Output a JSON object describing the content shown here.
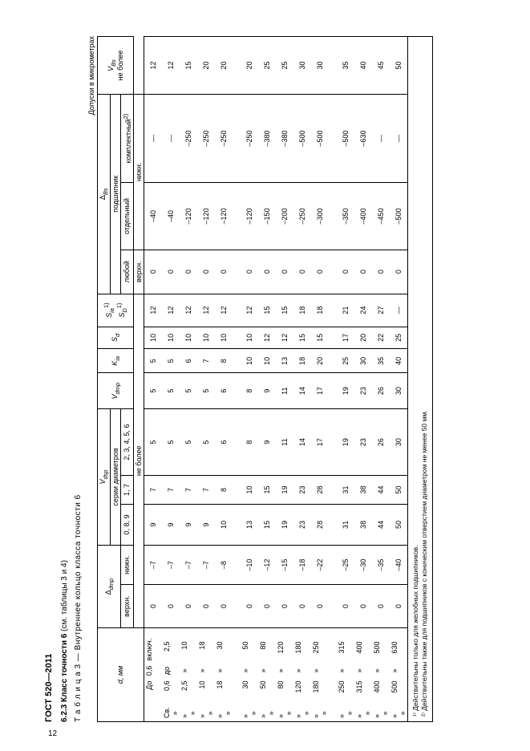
{
  "doc_header": "ГОСТ 520—2011",
  "page_number": "12",
  "section_number": "6.2.3",
  "section_title": "Класс точности 6",
  "section_paren": "(см. таблицы 3 и 4)",
  "table_label": "Т а б л и ц а  3 — Внутреннее кольцо класса точности 6",
  "units_label": "Допуски в микрометрах",
  "head": {
    "d_mm": "d, мм",
    "delta_dmp": "Δ_dmp",
    "V_dsp": "V_dsp",
    "series": "серии диаметров",
    "s089": "0, 8, 9",
    "s17": "1, 7",
    "s23456": "2, 3, 4, 5, 6",
    "V_dmp": "V_dmp",
    "Kia": "K_ia",
    "Sd": "S_d",
    "Sia_SD": "S_ia^1)\nS_D^1)",
    "delta_Bs": "Δ_Bs",
    "bearing": "подшипник",
    "any": "любой",
    "single": "отдельный",
    "complete": "комплектный^2)",
    "Vbs": "V_Bs\nне более",
    "upper": "верхн.",
    "lower": "нижн.",
    "not_more": "не более"
  },
  "rows": [
    {
      "a": "",
      "b": "До",
      "c": "0,6",
      "d": "включ.",
      "dmp_u": "0",
      "dmp_l": "–7",
      "v089": "9",
      "v17": "7",
      "v23456": "5",
      "vdmp": "5",
      "kia": "5",
      "sd": "10",
      "sia": "12",
      "bs_u": "0",
      "bs_s": "–40",
      "bs_c": "—",
      "vbs": "12"
    },
    {
      "a": "Св.",
      "b": "0,6",
      "c": "до",
      "d": "2,5",
      "post": "»",
      "dmp_u": "0",
      "dmp_l": "–7",
      "v089": "9",
      "v17": "7",
      "v23456": "5",
      "vdmp": "5",
      "kia": "5",
      "sd": "10",
      "sia": "12",
      "bs_u": "0",
      "bs_s": "–40",
      "bs_c": "—",
      "vbs": "12"
    },
    {
      "a": "»",
      "b": "2,5",
      "c": "»",
      "d": "10",
      "post": "»",
      "dmp_u": "0",
      "dmp_l": "–7",
      "v089": "9",
      "v17": "7",
      "v23456": "5",
      "vdmp": "5",
      "kia": "6",
      "sd": "10",
      "sia": "12",
      "bs_u": "0",
      "bs_s": "–120",
      "bs_c": "–250",
      "vbs": "15"
    },
    {
      "a": "»",
      "b": "10",
      "c": "»",
      "d": "18",
      "post": "»",
      "dmp_u": "0",
      "dmp_l": "–7",
      "v089": "9",
      "v17": "7",
      "v23456": "5",
      "vdmp": "5",
      "kia": "7",
      "sd": "10",
      "sia": "12",
      "bs_u": "0",
      "bs_s": "–120",
      "bs_c": "–250",
      "vbs": "20"
    },
    {
      "a": "»",
      "b": "18",
      "c": "»",
      "d": "30",
      "post": "»",
      "dmp_u": "0",
      "dmp_l": "–8",
      "v089": "10",
      "v17": "8",
      "v23456": "6",
      "vdmp": "6",
      "kia": "8",
      "sd": "10",
      "sia": "12",
      "bs_u": "0",
      "bs_s": "–120",
      "bs_c": "–250",
      "vbs": "20"
    },
    {
      "spacer": true
    },
    {
      "a": "»",
      "b": "30",
      "c": "»",
      "d": "50",
      "post": "»",
      "dmp_u": "0",
      "dmp_l": "–10",
      "v089": "13",
      "v17": "10",
      "v23456": "8",
      "vdmp": "8",
      "kia": "10",
      "sd": "10",
      "sia": "12",
      "bs_u": "0",
      "bs_s": "–120",
      "bs_c": "–250",
      "vbs": "20"
    },
    {
      "a": "»",
      "b": "50",
      "c": "»",
      "d": "80",
      "post": "»",
      "dmp_u": "0",
      "dmp_l": "–12",
      "v089": "15",
      "v17": "15",
      "v23456": "9",
      "vdmp": "9",
      "kia": "10",
      "sd": "12",
      "sia": "15",
      "bs_u": "0",
      "bs_s": "–150",
      "bs_c": "–380",
      "vbs": "25"
    },
    {
      "a": "»",
      "b": "80",
      "c": "»",
      "d": "120",
      "post": "»",
      "dmp_u": "0",
      "dmp_l": "–15",
      "v089": "19",
      "v17": "19",
      "v23456": "11",
      "vdmp": "11",
      "kia": "13",
      "sd": "12",
      "sia": "15",
      "bs_u": "0",
      "bs_s": "–200",
      "bs_c": "–380",
      "vbs": "25"
    },
    {
      "a": "»",
      "b": "120",
      "c": "»",
      "d": "180",
      "post": "»",
      "dmp_u": "0",
      "dmp_l": "–18",
      "v089": "23",
      "v17": "23",
      "v23456": "14",
      "vdmp": "14",
      "kia": "18",
      "sd": "15",
      "sia": "18",
      "bs_u": "0",
      "bs_s": "–250",
      "bs_c": "–500",
      "vbs": "30"
    },
    {
      "a": "»",
      "b": "180",
      "c": "»",
      "d": "250",
      "post": "»",
      "dmp_u": "0",
      "dmp_l": "–22",
      "v089": "28",
      "v17": "28",
      "v23456": "17",
      "vdmp": "17",
      "kia": "20",
      "sd": "15",
      "sia": "18",
      "bs_u": "0",
      "bs_s": "–300",
      "bs_c": "–500",
      "vbs": "30"
    },
    {
      "spacer": true
    },
    {
      "a": "»",
      "b": "250",
      "c": "»",
      "d": "315",
      "post": "»",
      "dmp_u": "0",
      "dmp_l": "–25",
      "v089": "31",
      "v17": "31",
      "v23456": "19",
      "vdmp": "19",
      "kia": "25",
      "sd": "17",
      "sia": "21",
      "bs_u": "0",
      "bs_s": "–350",
      "bs_c": "–500",
      "vbs": "35"
    },
    {
      "a": "»",
      "b": "315",
      "c": "»",
      "d": "400",
      "post": "»",
      "dmp_u": "0",
      "dmp_l": "–30",
      "v089": "38",
      "v17": "38",
      "v23456": "23",
      "vdmp": "23",
      "kia": "30",
      "sd": "20",
      "sia": "24",
      "bs_u": "0",
      "bs_s": "–400",
      "bs_c": "–630",
      "vbs": "40"
    },
    {
      "a": "»",
      "b": "400",
      "c": "»",
      "d": "500",
      "post": "»",
      "dmp_u": "0",
      "dmp_l": "–35",
      "v089": "44",
      "v17": "44",
      "v23456": "26",
      "vdmp": "26",
      "kia": "35",
      "sd": "22",
      "sia": "27",
      "bs_u": "0",
      "bs_s": "–450",
      "bs_c": "—",
      "vbs": "45"
    },
    {
      "a": "»",
      "b": "500",
      "c": "»",
      "d": "630",
      "post": "»",
      "dmp_u": "0",
      "dmp_l": "–40",
      "v089": "50",
      "v17": "50",
      "v23456": "30",
      "vdmp": "30",
      "kia": "40",
      "sd": "25",
      "sia": "—",
      "bs_u": "0",
      "bs_s": "–500",
      "bs_c": "—",
      "vbs": "50"
    }
  ],
  "footnote1": "¹⁾ Действительны только для желобных подшипников.",
  "footnote2": "²⁾ Действительны также для подшипников с коническим отверстием диаметром не менее 50 мм."
}
